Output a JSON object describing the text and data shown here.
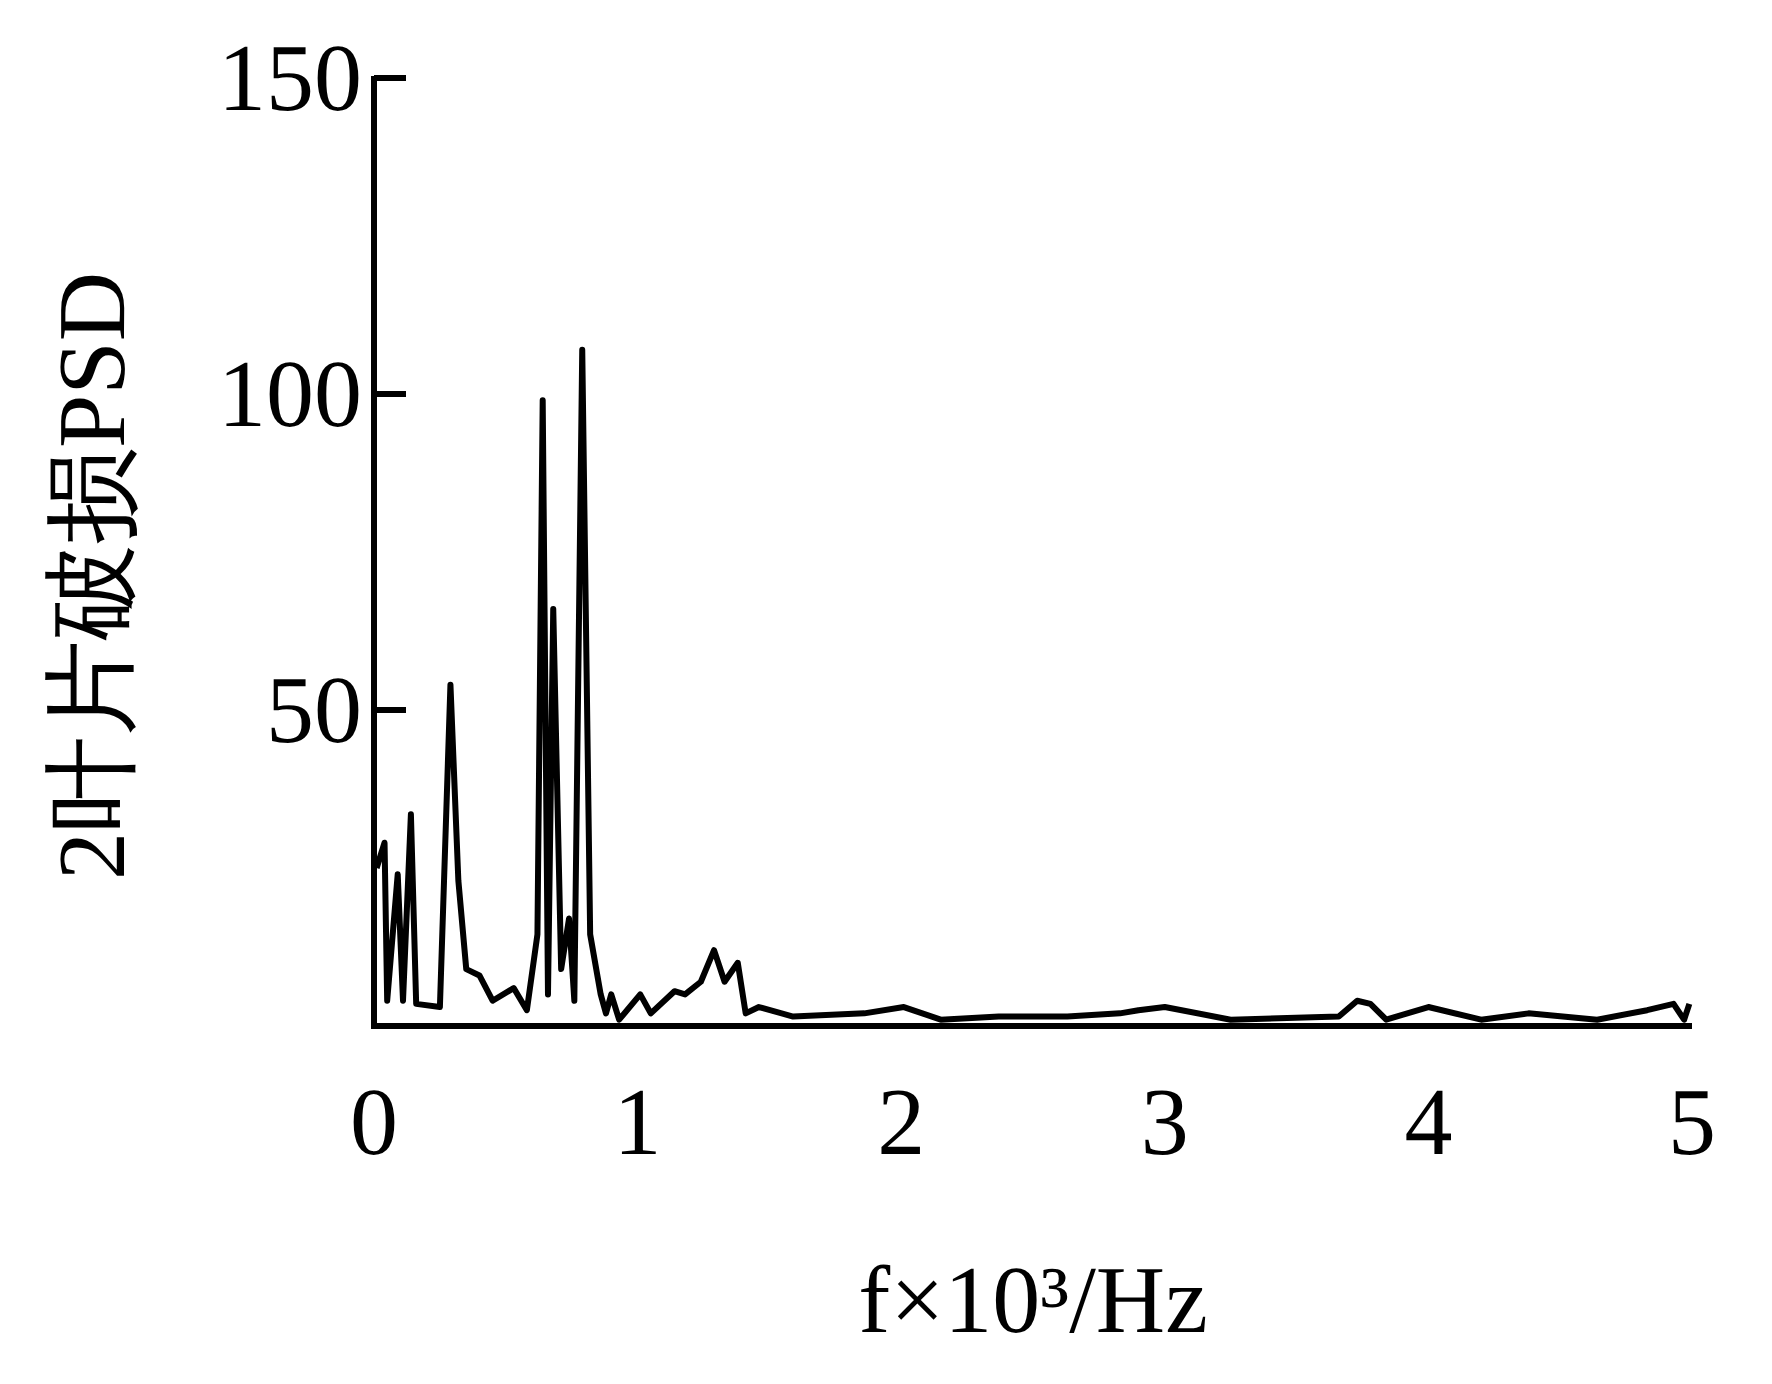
{
  "chart_data": {
    "type": "line",
    "xlabel": "f×10³/Hz",
    "ylabel": "2叶片破损PSD",
    "xlim": [
      0,
      5
    ],
    "ylim": [
      0,
      150
    ],
    "xticks": [
      0,
      1,
      2,
      3,
      4,
      5
    ],
    "yticks": [
      50,
      100,
      150
    ],
    "grid": false,
    "series": [
      {
        "color": "#000000",
        "x": [
          0.01,
          0.04,
          0.05,
          0.09,
          0.11,
          0.14,
          0.16,
          0.25,
          0.29,
          0.32,
          0.35,
          0.4,
          0.45,
          0.53,
          0.58,
          0.62,
          0.64,
          0.66,
          0.68,
          0.71,
          0.74,
          0.76,
          0.79,
          0.82,
          0.86,
          0.88,
          0.9,
          0.93,
          1.01,
          1.05,
          1.14,
          1.18,
          1.24,
          1.29,
          1.33,
          1.38,
          1.41,
          1.46,
          1.59,
          1.86,
          2.01,
          2.15,
          2.37,
          2.63,
          2.83,
          2.9,
          3.0,
          3.25,
          3.66,
          3.73,
          3.78,
          3.84,
          4.0,
          4.2,
          4.38,
          4.64,
          4.83,
          4.93,
          4.97,
          4.99
        ],
        "values": [
          25,
          29,
          4,
          24,
          4,
          33.5,
          3.5,
          3,
          54,
          23,
          9,
          8,
          4,
          6,
          2.5,
          14.5,
          99,
          5,
          66,
          9,
          17,
          4,
          107,
          14.5,
          5,
          2,
          5,
          1,
          5,
          2,
          5.5,
          5,
          7,
          12,
          7,
          10,
          2,
          3,
          1.5,
          2,
          3,
          1,
          1.5,
          1.5,
          2,
          2.5,
          3,
          1,
          1.5,
          4,
          3.5,
          1,
          3,
          1,
          2,
          1,
          2.5,
          3.5,
          1,
          3.5
        ]
      }
    ]
  }
}
